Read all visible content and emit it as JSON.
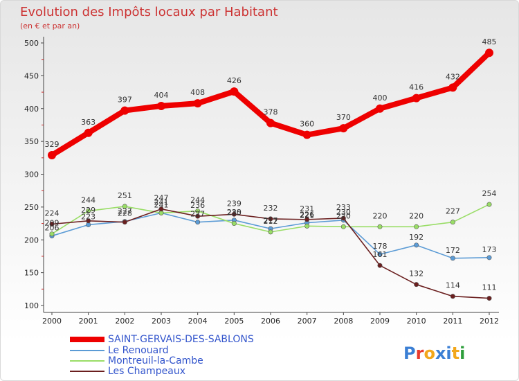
{
  "chart_data": {
    "type": "line",
    "title": "Evolution des Impôts locaux par Habitant",
    "subtitle": "(en € et par an)",
    "x": [
      "2000",
      "2001",
      "2002",
      "2003",
      "2004",
      "2005",
      "2006",
      "2007",
      "2008",
      "2009",
      "2010",
      "2011",
      "2012"
    ],
    "ylim": [
      100,
      500
    ],
    "yticks": [
      100,
      150,
      200,
      250,
      300,
      350,
      400,
      450,
      500
    ],
    "grid": false,
    "legend_position": "bottom-left",
    "series": [
      {
        "name": "SAINT-GERVAIS-DES-SABLONS",
        "color": "#ee0000",
        "values": [
          329,
          363,
          397,
          404,
          408,
          426,
          378,
          360,
          370,
          400,
          416,
          432,
          485
        ]
      },
      {
        "name": "Le Renouard",
        "color": "#5b9bd5",
        "values": [
          206,
          223,
          228,
          241,
          227,
          230,
          217,
          226,
          230,
          178,
          192,
          172,
          173
        ]
      },
      {
        "name": "Montreuil-la-Cambe",
        "color": "#99dd66",
        "values": [
          209,
          244,
          251,
          241,
          244,
          225,
          212,
          221,
          220,
          220,
          220,
          227,
          254
        ]
      },
      {
        "name": "Les Champeaux",
        "color": "#6b1f1f",
        "values": [
          224,
          229,
          227,
          247,
          236,
          239,
          232,
          231,
          233,
          161,
          132,
          114,
          111
        ]
      }
    ]
  },
  "logo": {
    "text": "Proxiti"
  }
}
